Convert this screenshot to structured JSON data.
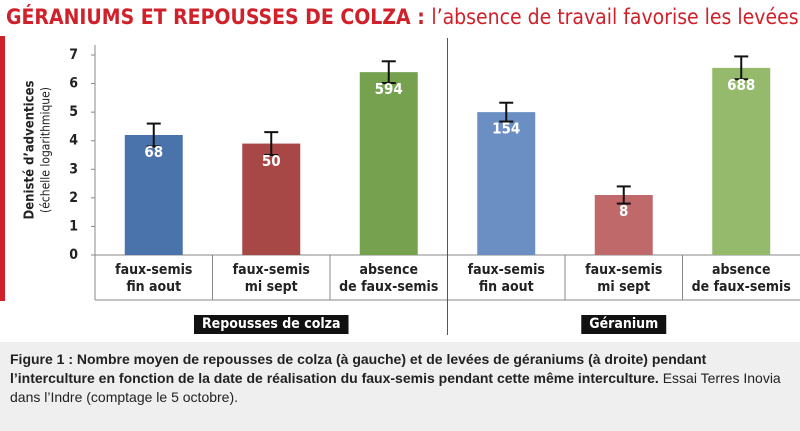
{
  "chart_data": {
    "type": "bar",
    "title": "GÉRANIUMS ET REPOUSSES DE COLZA :",
    "subtitle": "l’absence de travail favorise les levées",
    "y_label": "Denisté d’adventices",
    "y_sublabel": "(échelle logarithmique)",
    "categories": [
      "faux-semis\nfin aout",
      "faux-semis\nmi sept",
      "absence\nde faux-semis",
      "faux-semis\nfin aout",
      "faux-semis\nmi sept",
      "absence\nde faux-semis"
    ],
    "values": [
      4.2,
      3.9,
      6.4,
      5.0,
      2.1,
      6.55
    ],
    "errors": [
      0.4,
      0.4,
      0.38,
      0.33,
      0.3,
      0.4
    ],
    "counts": [
      68,
      50,
      594,
      154,
      8,
      688
    ],
    "colors": [
      "#4a73ab",
      "#a84846",
      "#76a24f",
      "#6b8fc3",
      "#c0696a",
      "#95ba6b"
    ],
    "groups": [
      "Repousses de colza",
      "Géranium"
    ],
    "ylim": [
      0,
      7
    ],
    "yticks": [
      0,
      1,
      2,
      3,
      4,
      5,
      6,
      7
    ],
    "caption_bold": "Figure 1 : Nombre moyen de repousses de colza (à gauche) et de levées de géraniums (à droite) pendant l’interculture en fonction de la date de réalisation du faux-semis pendant cette même interculture.",
    "caption": "Essai Terres Inovia dans l’Indre (comptage le 5 octobre)."
  }
}
